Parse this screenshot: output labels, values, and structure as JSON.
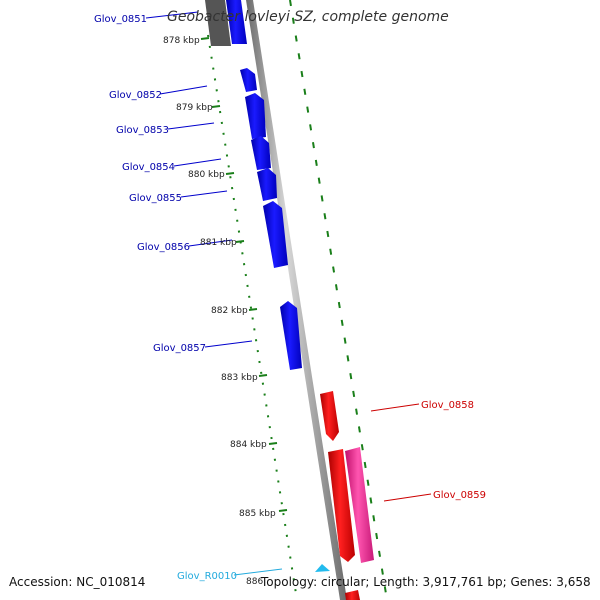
{
  "title": "Geobacter lovleyi SZ, complete genome",
  "accession": "Accession: NC_010814",
  "summary": "Topology: circular; Length: 3,917,761 bp; Genes: 3,658",
  "colors": {
    "forward_gene": "#0000ee",
    "reverse_gene": "#ee0000",
    "reverse_gene_alt": "#ee2b8d",
    "rna_gene": "#22bbee",
    "backbone": "#8c8c8c",
    "tick": "#1a7f1a"
  },
  "ticks": [
    "878 kbp",
    "879 kbp",
    "880 kbp",
    "881 kbp",
    "882 kbp",
    "883 kbp",
    "884 kbp",
    "885 kbp",
    "886"
  ],
  "genes": [
    {
      "id": "Glov_0851",
      "strand": "forward"
    },
    {
      "id": "Glov_0852",
      "strand": "forward"
    },
    {
      "id": "Glov_0853",
      "strand": "forward"
    },
    {
      "id": "Glov_0854",
      "strand": "forward"
    },
    {
      "id": "Glov_0855",
      "strand": "forward"
    },
    {
      "id": "Glov_0856",
      "strand": "forward"
    },
    {
      "id": "Glov_0857",
      "strand": "forward"
    },
    {
      "id": "Glov_0858",
      "strand": "reverse"
    },
    {
      "id": "Glov_0859",
      "strand": "reverse"
    },
    {
      "id": "Glov_R0010",
      "strand": "rna"
    }
  ]
}
